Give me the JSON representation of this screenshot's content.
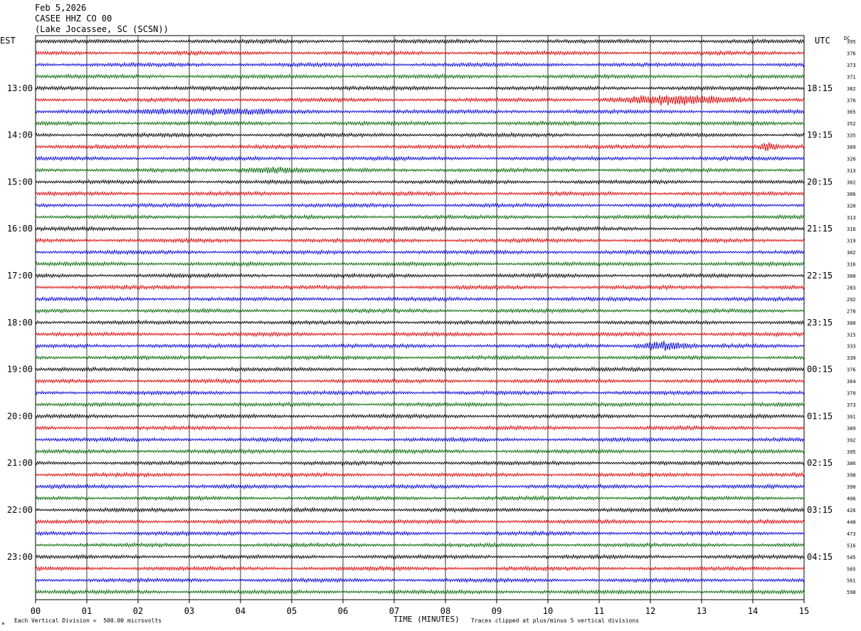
{
  "header": {
    "date": "Feb 5,2026",
    "station": "CASEE HHZ CO 00",
    "location": "(Lake Jocassee, SC (SCSN))"
  },
  "left_tz": "EST",
  "right_tz": "UTC",
  "dc_label": "DC",
  "footer": {
    "scale_note": "Each Vertical Division =  500.00 microvolts",
    "xlabel": "TIME (MINUTES)",
    "clip_note": "Traces clipped at plus/minus 5 vertical divisions"
  },
  "colors": {
    "trace_cycle": [
      "#000000",
      "#dd0000",
      "#0000dd",
      "#006600"
    ],
    "grid": "#000000"
  },
  "chart_data": {
    "type": "line",
    "xlabel": "TIME (MINUTES)",
    "xlim": [
      0,
      15
    ],
    "x_ticks": [
      "00",
      "01",
      "02",
      "03",
      "04",
      "05",
      "06",
      "07",
      "08",
      "09",
      "10",
      "11",
      "12",
      "13",
      "14",
      "15"
    ],
    "row_count": 48,
    "rows_per_hour": 4,
    "left_hour_labels": [
      "13:00",
      "14:00",
      "15:00",
      "16:00",
      "17:00",
      "18:00",
      "19:00",
      "20:00",
      "21:00",
      "22:00",
      "23:00"
    ],
    "right_hour_labels": [
      "18:15",
      "19:15",
      "20:15",
      "21:15",
      "22:15",
      "23:15",
      "00:15",
      "01:15",
      "02:15",
      "03:15",
      "04:15"
    ],
    "dc_values": [
      "395",
      "376",
      "373",
      "371",
      "382",
      "376",
      "365",
      "352",
      "335",
      "309",
      "326",
      "313",
      "302",
      "306",
      "320",
      "313",
      "316",
      "319",
      "302",
      "316",
      "300",
      "283",
      "292",
      "278",
      "300",
      "315",
      "333",
      "339",
      "376",
      "364",
      "370",
      "373",
      "391",
      "389",
      "392",
      "395",
      "386",
      "398",
      "390",
      "406",
      "426",
      "448",
      "473",
      "516",
      "545",
      "565",
      "561",
      "598"
    ],
    "events": [
      {
        "row": 5,
        "start_min": 10.9,
        "end_min": 14.3,
        "amp": 6
      },
      {
        "row": 6,
        "start_min": 1.7,
        "end_min": 5.0,
        "amp": 4
      },
      {
        "row": 11,
        "start_min": 3.8,
        "end_min": 5.4,
        "amp": 4
      },
      {
        "row": 26,
        "start_min": 11.6,
        "end_min": 12.9,
        "amp": 6
      },
      {
        "row": 9,
        "start_min": 14.1,
        "end_min": 14.5,
        "amp": 5
      }
    ]
  }
}
